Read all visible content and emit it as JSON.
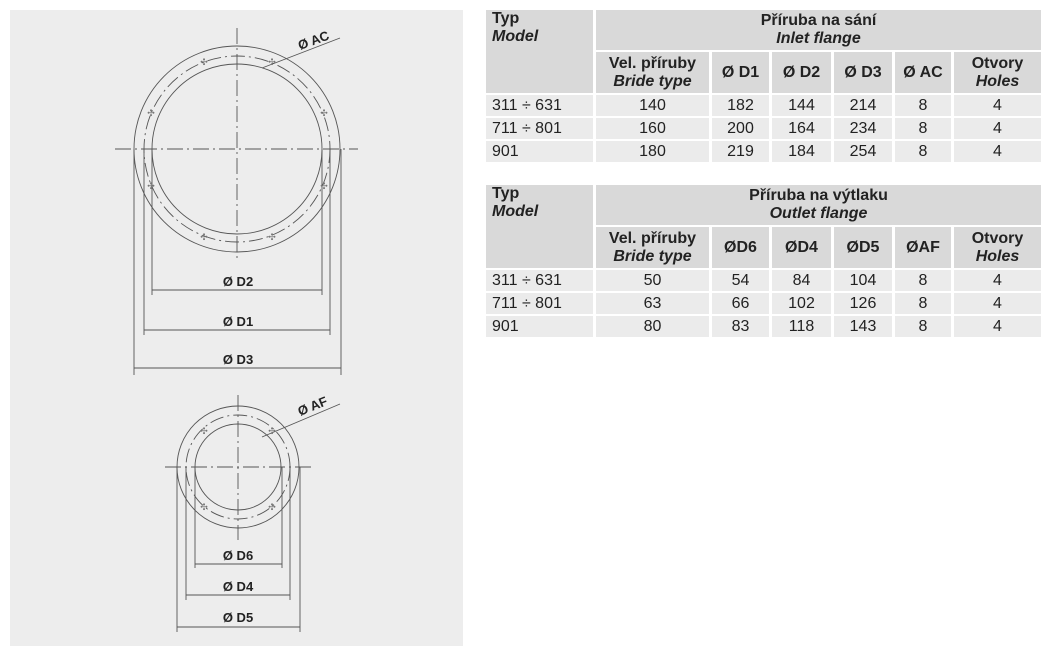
{
  "drawing": {
    "labels": {
      "ac": "Ø AC",
      "d2": "Ø D2",
      "d1": "Ø D1",
      "d3": "Ø D3",
      "af": "Ø AF",
      "d6": "Ø D6",
      "d4": "Ø D4",
      "d5": "Ø D5"
    }
  },
  "inlet": {
    "typ": "Typ",
    "model": "Model",
    "title": "Příruba na sání",
    "subtitle": "Inlet flange",
    "cols": [
      {
        "a": "Vel. příruby",
        "b": "Bride type"
      },
      {
        "a": "Ø D1"
      },
      {
        "a": "Ø D2"
      },
      {
        "a": "Ø D3"
      },
      {
        "a": "Ø AC"
      },
      {
        "a": "Otvory",
        "b": "Holes"
      }
    ],
    "rows": [
      [
        "311 ÷ 631",
        "140",
        "182",
        "144",
        "214",
        "8",
        "4"
      ],
      [
        "711 ÷ 801",
        "160",
        "200",
        "164",
        "234",
        "8",
        "4"
      ],
      [
        "901",
        "180",
        "219",
        "184",
        "254",
        "8",
        "4"
      ]
    ]
  },
  "outlet": {
    "typ": "Typ",
    "model": "Model",
    "title": "Příruba na výtlaku",
    "subtitle": "Outlet flange",
    "cols": [
      {
        "a": "Vel. příruby",
        "b": "Bride type"
      },
      {
        "a": "ØD6"
      },
      {
        "a": "ØD4"
      },
      {
        "a": "ØD5"
      },
      {
        "a": "ØAF"
      },
      {
        "a": "Otvory",
        "b": "Holes"
      }
    ],
    "rows": [
      [
        "311 ÷ 631",
        "50",
        "54",
        "84",
        "104",
        "8",
        "4"
      ],
      [
        "711 ÷ 801",
        "63",
        "66",
        "102",
        "126",
        "8",
        "4"
      ],
      [
        "901",
        "80",
        "83",
        "118",
        "143",
        "8",
        "4"
      ]
    ]
  }
}
